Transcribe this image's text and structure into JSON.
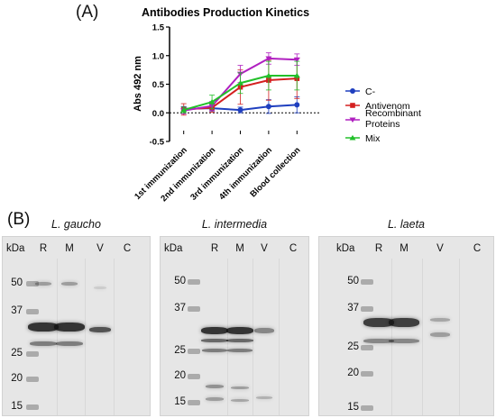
{
  "panel_a_label": "(A)",
  "panel_b_label": "(B)",
  "chart_data": {
    "type": "line",
    "title": "Antibodies Production Kinetics",
    "ylabel": "Abs 492 nm",
    "xlabel": "",
    "categories": [
      "1st immunization",
      "2nd immunization",
      "3rd immunization",
      "4th immunization",
      "Blood collection"
    ],
    "ylim": [
      -0.5,
      1.5
    ],
    "yticks": [
      "-0.5",
      "0.0",
      "0.5",
      "1.0",
      "1.5"
    ],
    "baseline": 0.0,
    "legend_position": "right",
    "series": [
      {
        "name": "C-",
        "color": "#1f3fbf",
        "marker": "circle",
        "values": [
          0.07,
          0.08,
          0.05,
          0.11,
          0.14
        ],
        "errors": [
          0.04,
          0.05,
          0.05,
          0.12,
          0.14
        ]
      },
      {
        "name": "Antivenom",
        "color": "#d42020",
        "marker": "square",
        "values": [
          0.06,
          0.09,
          0.45,
          0.57,
          0.6
        ],
        "errors": [
          0.1,
          0.08,
          0.3,
          0.35,
          0.35
        ]
      },
      {
        "name": "Recombinant Proteins",
        "color": "#b020c0",
        "marker": "triangle-down",
        "values": [
          0.04,
          0.12,
          0.68,
          0.95,
          0.93
        ],
        "errors": [
          0.06,
          0.08,
          0.15,
          0.1,
          0.1
        ]
      },
      {
        "name": "Mix",
        "color": "#22c02a",
        "marker": "triangle-up",
        "values": [
          0.05,
          0.19,
          0.52,
          0.65,
          0.65
        ],
        "errors": [
          0.05,
          0.12,
          0.18,
          0.25,
          0.25
        ]
      }
    ]
  },
  "blots": [
    {
      "title": "L. gaucho",
      "kda": "kDa",
      "lanes": [
        "R",
        "M",
        "V",
        "C"
      ],
      "markers": [
        "50",
        "37",
        "25",
        "20",
        "15"
      ]
    },
    {
      "title": "L. intermedia",
      "kda": "kDa",
      "lanes": [
        "R",
        "M",
        "V",
        "C"
      ],
      "markers": [
        "50",
        "37",
        "25",
        "20",
        "15"
      ]
    },
    {
      "title": "L. laeta",
      "kda": "kDa",
      "lanes": [
        "R",
        "M",
        "V",
        "C"
      ],
      "markers": [
        "50",
        "37",
        "25",
        "20",
        "15"
      ]
    }
  ]
}
